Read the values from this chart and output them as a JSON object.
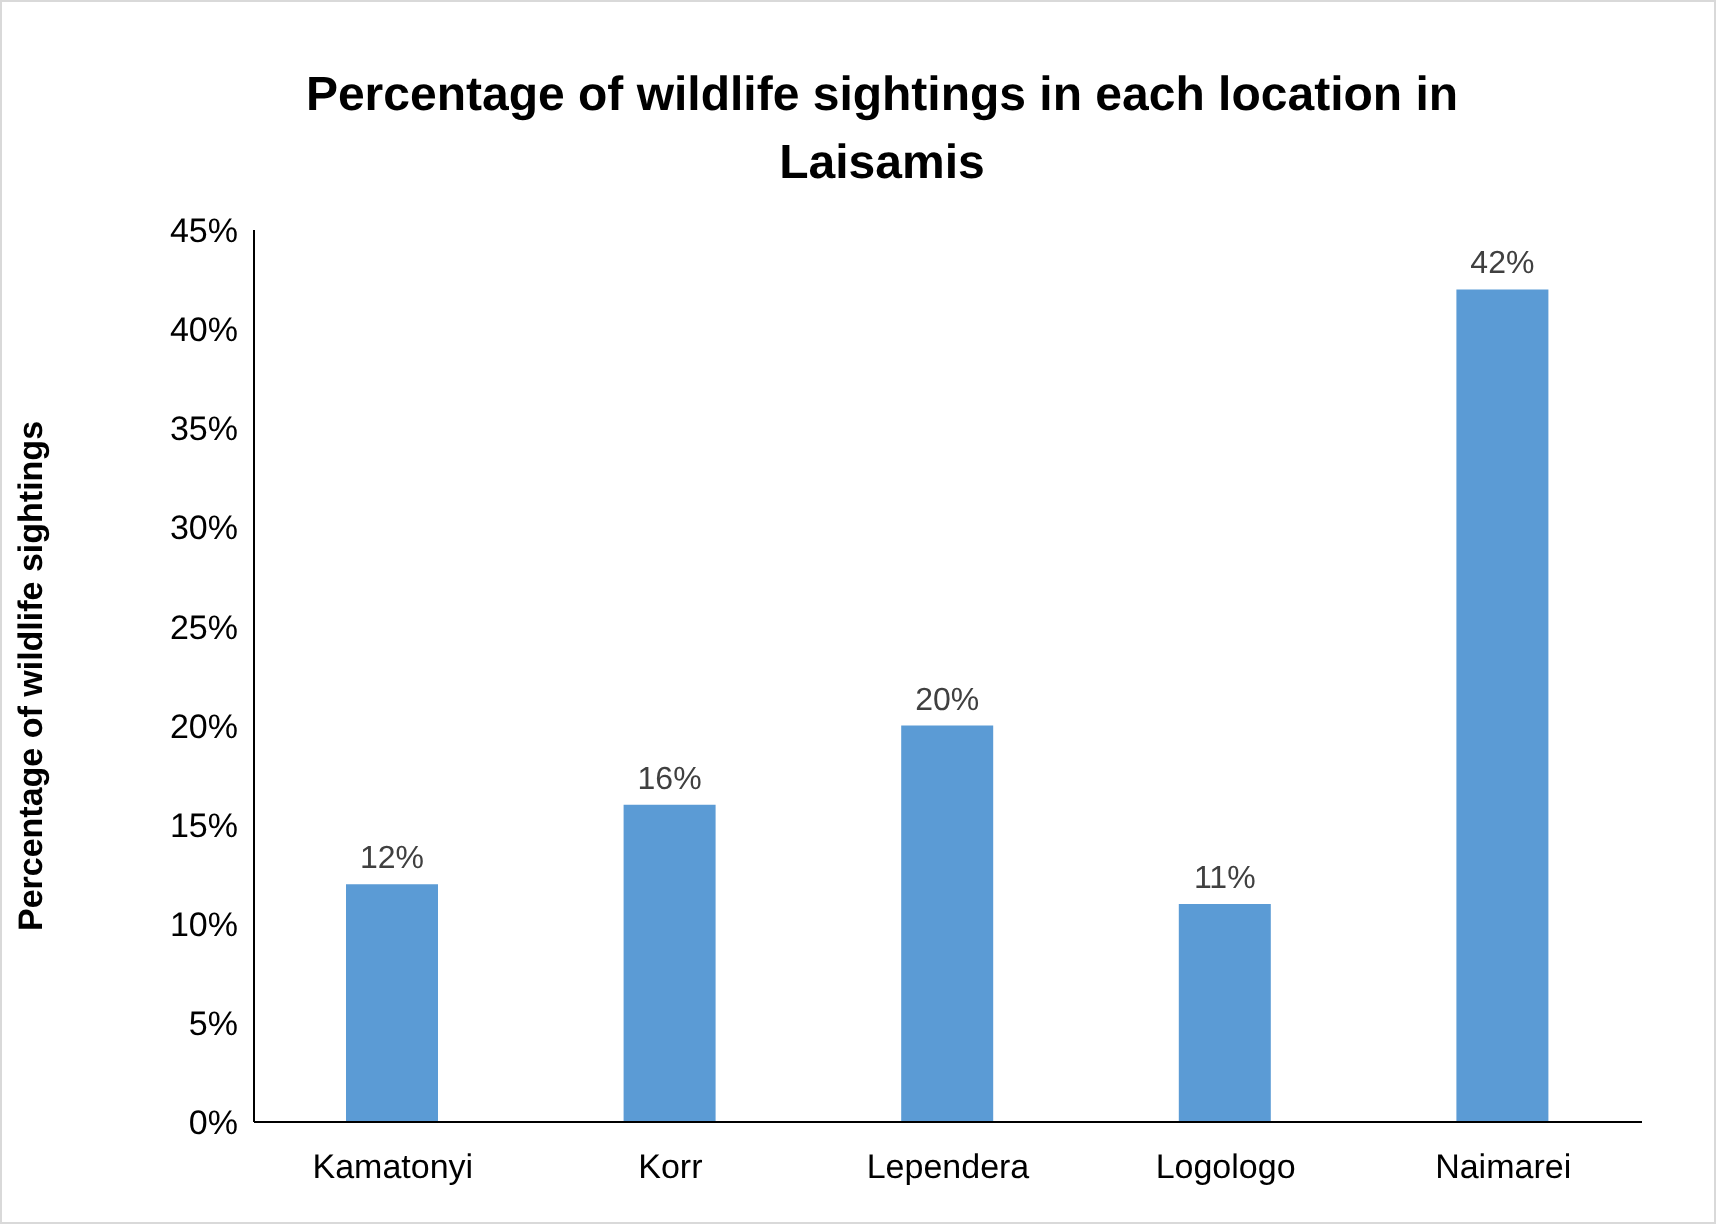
{
  "chart_data": {
    "type": "bar",
    "title": "Percentage of wildlife sightings in each location in Laisamis",
    "ylabel": "Percentage of wildlife sightings",
    "categories": [
      "Kamatonyi",
      "Korr",
      "Lependera",
      "Logologo",
      "Naimarei"
    ],
    "values": [
      12,
      16,
      20,
      11,
      42
    ],
    "value_labels": [
      "12%",
      "16%",
      "20%",
      "11%",
      "42%"
    ],
    "color": "#5b9bd5",
    "ylim": [
      0,
      45
    ],
    "yticks": [
      {
        "value": 0,
        "label": "0%"
      },
      {
        "value": 5,
        "label": "5%"
      },
      {
        "value": 10,
        "label": "10%"
      },
      {
        "value": 15,
        "label": "15%"
      },
      {
        "value": 20,
        "label": "20%"
      },
      {
        "value": 25,
        "label": "25%"
      },
      {
        "value": 30,
        "label": "30%"
      },
      {
        "value": 35,
        "label": "35%"
      },
      {
        "value": 40,
        "label": "40%"
      },
      {
        "value": 45,
        "label": "45%"
      }
    ],
    "grid": false,
    "legend": false
  }
}
